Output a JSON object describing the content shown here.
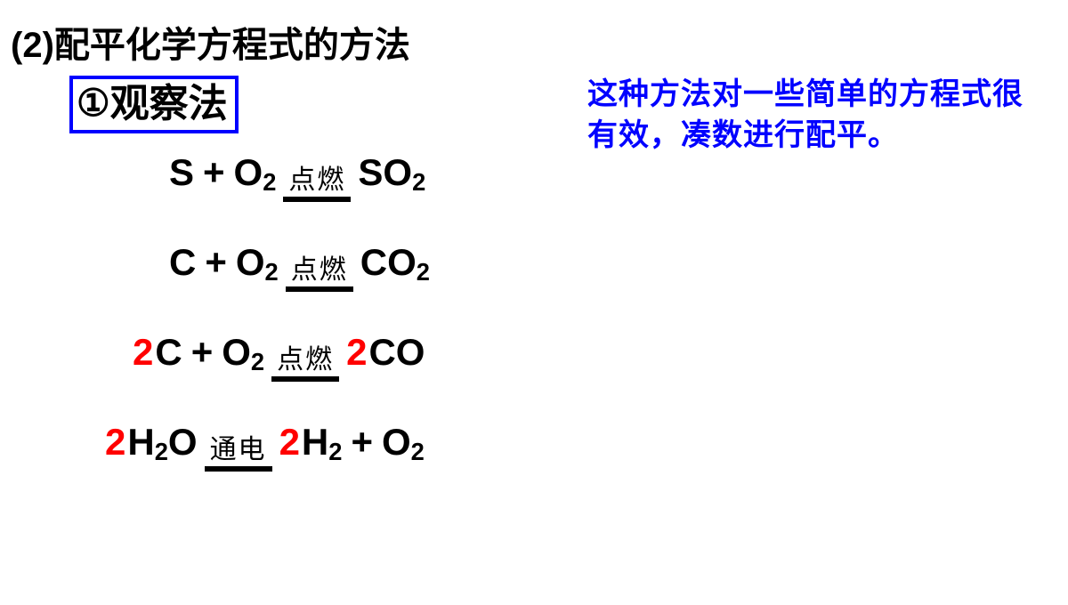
{
  "heading": {
    "number": "(2)",
    "text": "配平化学方程式的方法"
  },
  "method": {
    "circle": "①",
    "name": "观察法"
  },
  "description": "这种方法对一些简单的方程式很有效，凑数进行配平。",
  "conditions": {
    "ignite": "点燃",
    "electrolysis": "通电"
  },
  "equations": [
    {
      "left": [
        {
          "coef": "",
          "formula": "S"
        },
        {
          "coef": "",
          "formula": "O2"
        }
      ],
      "cond_key": "ignite",
      "right": [
        {
          "coef": "",
          "formula": "SO2"
        }
      ],
      "pad": "pad-l1"
    },
    {
      "left": [
        {
          "coef": "",
          "formula": "C"
        },
        {
          "coef": "",
          "formula": "O2"
        }
      ],
      "cond_key": "ignite",
      "right": [
        {
          "coef": "",
          "formula": "CO2"
        }
      ],
      "pad": "pad-l1"
    },
    {
      "left": [
        {
          "coef": "2",
          "formula": "C"
        },
        {
          "coef": "",
          "formula": "O2"
        }
      ],
      "cond_key": "ignite",
      "right": [
        {
          "coef": "2",
          "formula": "CO"
        }
      ],
      "pad": "pad-l2"
    },
    {
      "left": [
        {
          "coef": "2",
          "formula": "H2O"
        }
      ],
      "cond_key": "electrolysis",
      "right": [
        {
          "coef": "2",
          "formula": "H2"
        },
        {
          "coef": "",
          "formula": "O2"
        }
      ],
      "pad": "pad-l3"
    }
  ],
  "colors": {
    "background": "#ffffff",
    "text": "#000000",
    "border": "#0000ff",
    "blue_text": "#0000ff",
    "coef": "#ff0000"
  }
}
